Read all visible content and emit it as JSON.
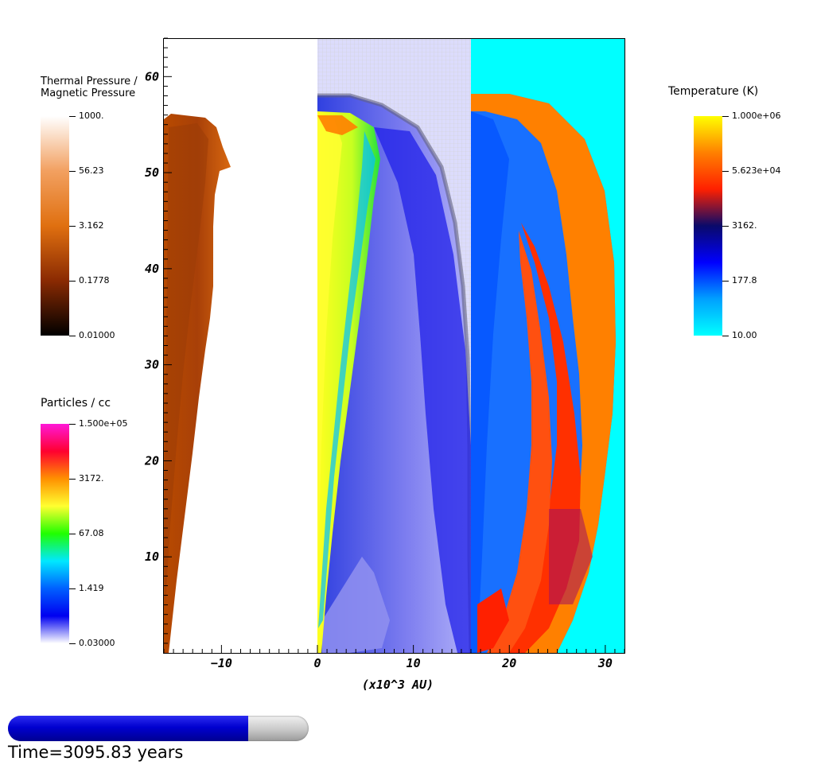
{
  "chart_data": {
    "type": "heatmap",
    "xlabel": "(x10^3 AU)",
    "ylabel": "",
    "xlim": [
      -16,
      32
    ],
    "ylim": [
      0,
      64
    ],
    "x_ticks": [
      -10,
      0,
      10,
      20,
      30
    ],
    "x_tick_labels": [
      "−10",
      "0",
      "10",
      "20",
      "30"
    ],
    "y_ticks": [
      10,
      20,
      30,
      40,
      50,
      60
    ],
    "y_tick_labels": [
      "10",
      "20",
      "30",
      "40",
      "50",
      "60"
    ],
    "panels": [
      {
        "quantity": "Thermal Pressure / Magnetic Pressure",
        "x_range": [
          -16,
          0
        ]
      },
      {
        "quantity": "Particles / cc",
        "x_range": [
          0,
          16
        ]
      },
      {
        "quantity": "Temperature (K)",
        "x_range": [
          16,
          32
        ]
      }
    ],
    "colorbars": [
      {
        "id": "pressure",
        "title_lines": [
          "Thermal Pressure /",
          "Magnetic Pressure"
        ],
        "labels": [
          "1000.",
          "56.23",
          "3.162",
          "0.1778",
          "0.01000"
        ],
        "stops": [
          "#ffffff",
          "#f2a060",
          "#e07010",
          "#8a2a02",
          "#000000"
        ]
      },
      {
        "id": "density",
        "title_lines": [
          "Particles / cc"
        ],
        "labels": [
          "1.500e+05",
          "3172.",
          "67.08",
          "1.419",
          "0.03000"
        ],
        "stops": [
          "#ff18d8",
          "#ff0030",
          "#ff9000",
          "#ffff30",
          "#20ff00",
          "#00e8ff",
          "#0060ff",
          "#0000f0",
          "#ffffff"
        ]
      },
      {
        "id": "temperature",
        "title_lines": [
          "Temperature (K)"
        ],
        "labels": [
          "1.000e+06",
          "5.623e+04",
          "3162.",
          "177.8",
          "10.00"
        ],
        "stops": [
          "#ffff00",
          "#ff8000",
          "#ff2000",
          "#0a0a6a",
          "#0000ff",
          "#00a0ff",
          "#00ffff"
        ]
      }
    ]
  },
  "colors": {
    "cyan_background": "#00ffff",
    "density_background": "#c8c8ff"
  },
  "time": {
    "label": "Time=3095.83 years",
    "progress_fraction": 0.8
  }
}
